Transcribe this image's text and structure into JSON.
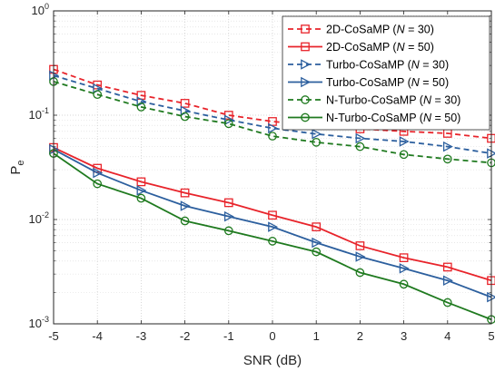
{
  "chart_data": {
    "type": "line",
    "xlabel": "SNR (dB)",
    "ylabel": "P",
    "ylabel_subscript": "e",
    "x": [
      -5,
      -4,
      -3,
      -2,
      -1,
      0,
      1,
      2,
      3,
      4,
      5
    ],
    "xlim": [
      -5,
      5
    ],
    "ylim": [
      0.001,
      1
    ],
    "yscale": "log",
    "x_tick_labels": [
      "-5",
      "-4",
      "-3",
      "-2",
      "-1",
      "0",
      "1",
      "2",
      "3",
      "4",
      "5"
    ],
    "y_tick_labels": [
      {
        "base": "10",
        "exp": "-3",
        "value": 0.001
      },
      {
        "base": "10",
        "exp": "-2",
        "value": 0.01
      },
      {
        "base": "10",
        "exp": "-1",
        "value": 0.1
      },
      {
        "base": "10",
        "exp": "0",
        "value": 1
      }
    ],
    "grid": true,
    "minor_grid": true,
    "legend_position": "top-right",
    "series": [
      {
        "name": "2D-CoSaMP",
        "n_label": "N",
        "n_value": "30",
        "color": "#e8242b",
        "linestyle": "dashed",
        "marker": "square",
        "values": [
          0.275,
          0.195,
          0.155,
          0.13,
          0.1,
          0.087,
          0.08,
          0.074,
          0.07,
          0.067,
          0.06
        ]
      },
      {
        "name": "2D-CoSaMP",
        "n_label": "N",
        "n_value": "50",
        "color": "#e8242b",
        "linestyle": "solid",
        "marker": "square",
        "values": [
          0.049,
          0.031,
          0.023,
          0.018,
          0.0145,
          0.011,
          0.0085,
          0.0056,
          0.0043,
          0.0035,
          0.0026
        ]
      },
      {
        "name": "Turbo-CoSaMP",
        "n_label": "N",
        "n_value": "30",
        "color": "#2c5f9e",
        "linestyle": "dashed",
        "marker": "triangle-right",
        "values": [
          0.24,
          0.18,
          0.135,
          0.11,
          0.09,
          0.075,
          0.066,
          0.06,
          0.056,
          0.05,
          0.043
        ]
      },
      {
        "name": "Turbo-CoSaMP",
        "n_label": "N",
        "n_value": "50",
        "color": "#2c5f9e",
        "linestyle": "solid",
        "marker": "triangle-right",
        "values": [
          0.047,
          0.028,
          0.019,
          0.0135,
          0.0107,
          0.0085,
          0.006,
          0.0044,
          0.0034,
          0.0026,
          0.0018
        ]
      },
      {
        "name": "N-Turbo-CoSaMP",
        "n_label": "N",
        "n_value": "30",
        "color": "#1f7a1f",
        "linestyle": "dashed",
        "marker": "circle",
        "values": [
          0.21,
          0.158,
          0.12,
          0.097,
          0.083,
          0.063,
          0.055,
          0.05,
          0.042,
          0.038,
          0.035
        ]
      },
      {
        "name": "N-Turbo-CoSaMP",
        "n_label": "N",
        "n_value": "50",
        "color": "#1f7a1f",
        "linestyle": "solid",
        "marker": "circle",
        "values": [
          0.043,
          0.022,
          0.016,
          0.0097,
          0.0078,
          0.0062,
          0.0049,
          0.0031,
          0.0024,
          0.0016,
          0.0011
        ]
      }
    ]
  }
}
